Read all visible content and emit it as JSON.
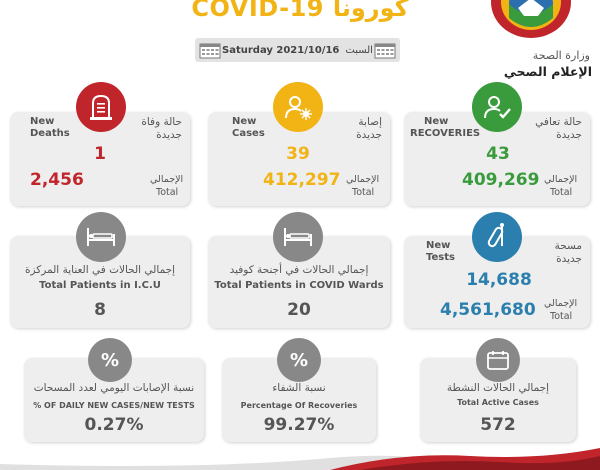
{
  "header": {
    "title": "COVID-19 كورونا",
    "day_ar": "السبت",
    "date_en": "Saturday 2021/10/16",
    "ministry": "وزارة الصحة",
    "media": "الإعلام الصحي"
  },
  "deaths": {
    "label_en_1": "New",
    "label_en_2": "Deaths",
    "label_ar_1": "حالة وفاة",
    "label_ar_2": "جديدة",
    "new_value": "1",
    "total_ar": "الإجمالي",
    "total_en": "Total",
    "total_value": "2,456",
    "color": "#c0252b"
  },
  "cases": {
    "label_en_1": "New",
    "label_en_2": "Cases",
    "label_ar_1": "إصابة",
    "label_ar_2": "جديدة",
    "new_value": "39",
    "total_ar": "الإجمالي",
    "total_en": "Total",
    "total_value": "412,297",
    "color": "#f2b315"
  },
  "recoveries": {
    "label_en_1": "New",
    "label_en_2": "RECOVERIES",
    "label_ar_1": "حالة تعافي",
    "label_ar_2": "جديدة",
    "new_value": "43",
    "total_ar": "الإجمالي",
    "total_en": "Total",
    "total_value": "409,269",
    "color": "#3a9b3d"
  },
  "icu": {
    "label_ar": "إجمالي الحالات  في العناية المركزة",
    "label_en": "Total Patients in I.C.U",
    "value": "8"
  },
  "wards": {
    "label_ar": "إجمالي الحالات  في أجنحة كوفيد",
    "label_en": "Total Patients in COVID  Wards",
    "value": "20"
  },
  "tests": {
    "label_en_1": "New",
    "label_en_2": "Tests",
    "label_ar_1": "مسحة",
    "label_ar_2": "جديدة",
    "new_value": "14,688",
    "total_ar": "الإجمالي",
    "total_en": "Total",
    "total_value": "4,561,680",
    "color": "#2b7fae"
  },
  "daily_ratio": {
    "label_ar": "نسبة الإصابات اليومي لعدد المسحات",
    "label_en": "% OF DAILY NEW CASES/NEW TESTS",
    "value": "0.27%",
    "symbol": "%"
  },
  "recovery_pct": {
    "label_ar": "نسبة الشفاء",
    "label_en": "Percentage Of Recoveries",
    "value": "99.27%",
    "symbol": "%"
  },
  "active": {
    "label_ar": "إجمالي الحالات النشطة",
    "label_en": "Total Active Cases",
    "value": "572"
  },
  "icons": {
    "deaths": "tombstone-icon",
    "cases": "virus-person-icon",
    "recoveries": "check-person-icon",
    "icu": "hospital-bed-icon",
    "wards": "hospital-bed-icon",
    "tests": "test-tube-icon",
    "daily_ratio": "percent-icon",
    "recovery_pct": "percent-icon",
    "active": "calendar-icon"
  }
}
